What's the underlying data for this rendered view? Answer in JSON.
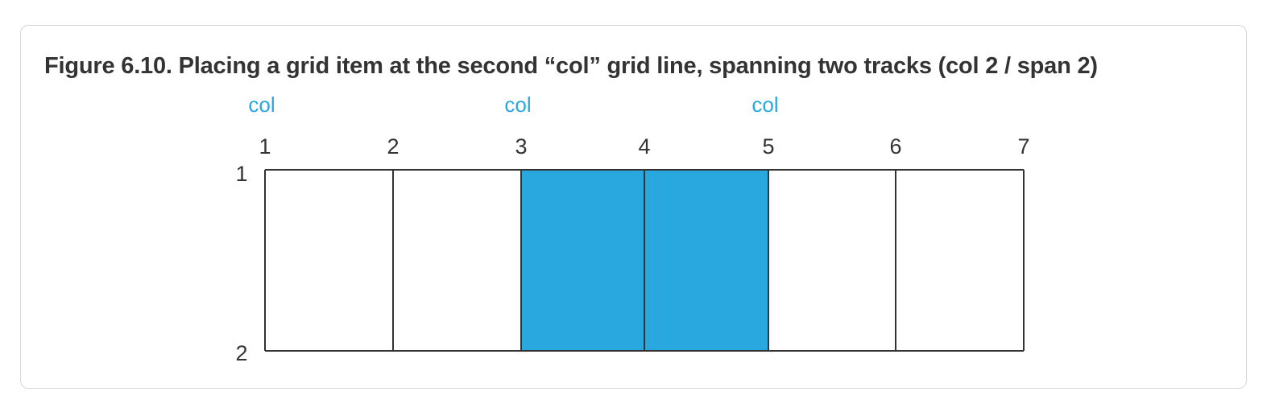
{
  "figure": {
    "caption": "Figure 6.10. Placing a grid item at the second “col” grid line, spanning two tracks (col 2 / span 2)"
  },
  "grid": {
    "line_names": [
      "col",
      "col",
      "col"
    ],
    "named_lines": [
      1,
      3,
      5
    ],
    "column_lines": [
      "1",
      "2",
      "3",
      "4",
      "5",
      "6",
      "7"
    ],
    "row_lines": [
      "1",
      "2"
    ],
    "placed_item": {
      "column_start_line": 3,
      "column_end_line": 5,
      "row_start_line": 1,
      "row_end_line": 2
    }
  },
  "colors": {
    "highlight": "#29a8e0",
    "line_name_text": "#29a8e0",
    "cell_border": "#333333",
    "number_text": "#333333",
    "card_border": "#d6d6d6"
  }
}
